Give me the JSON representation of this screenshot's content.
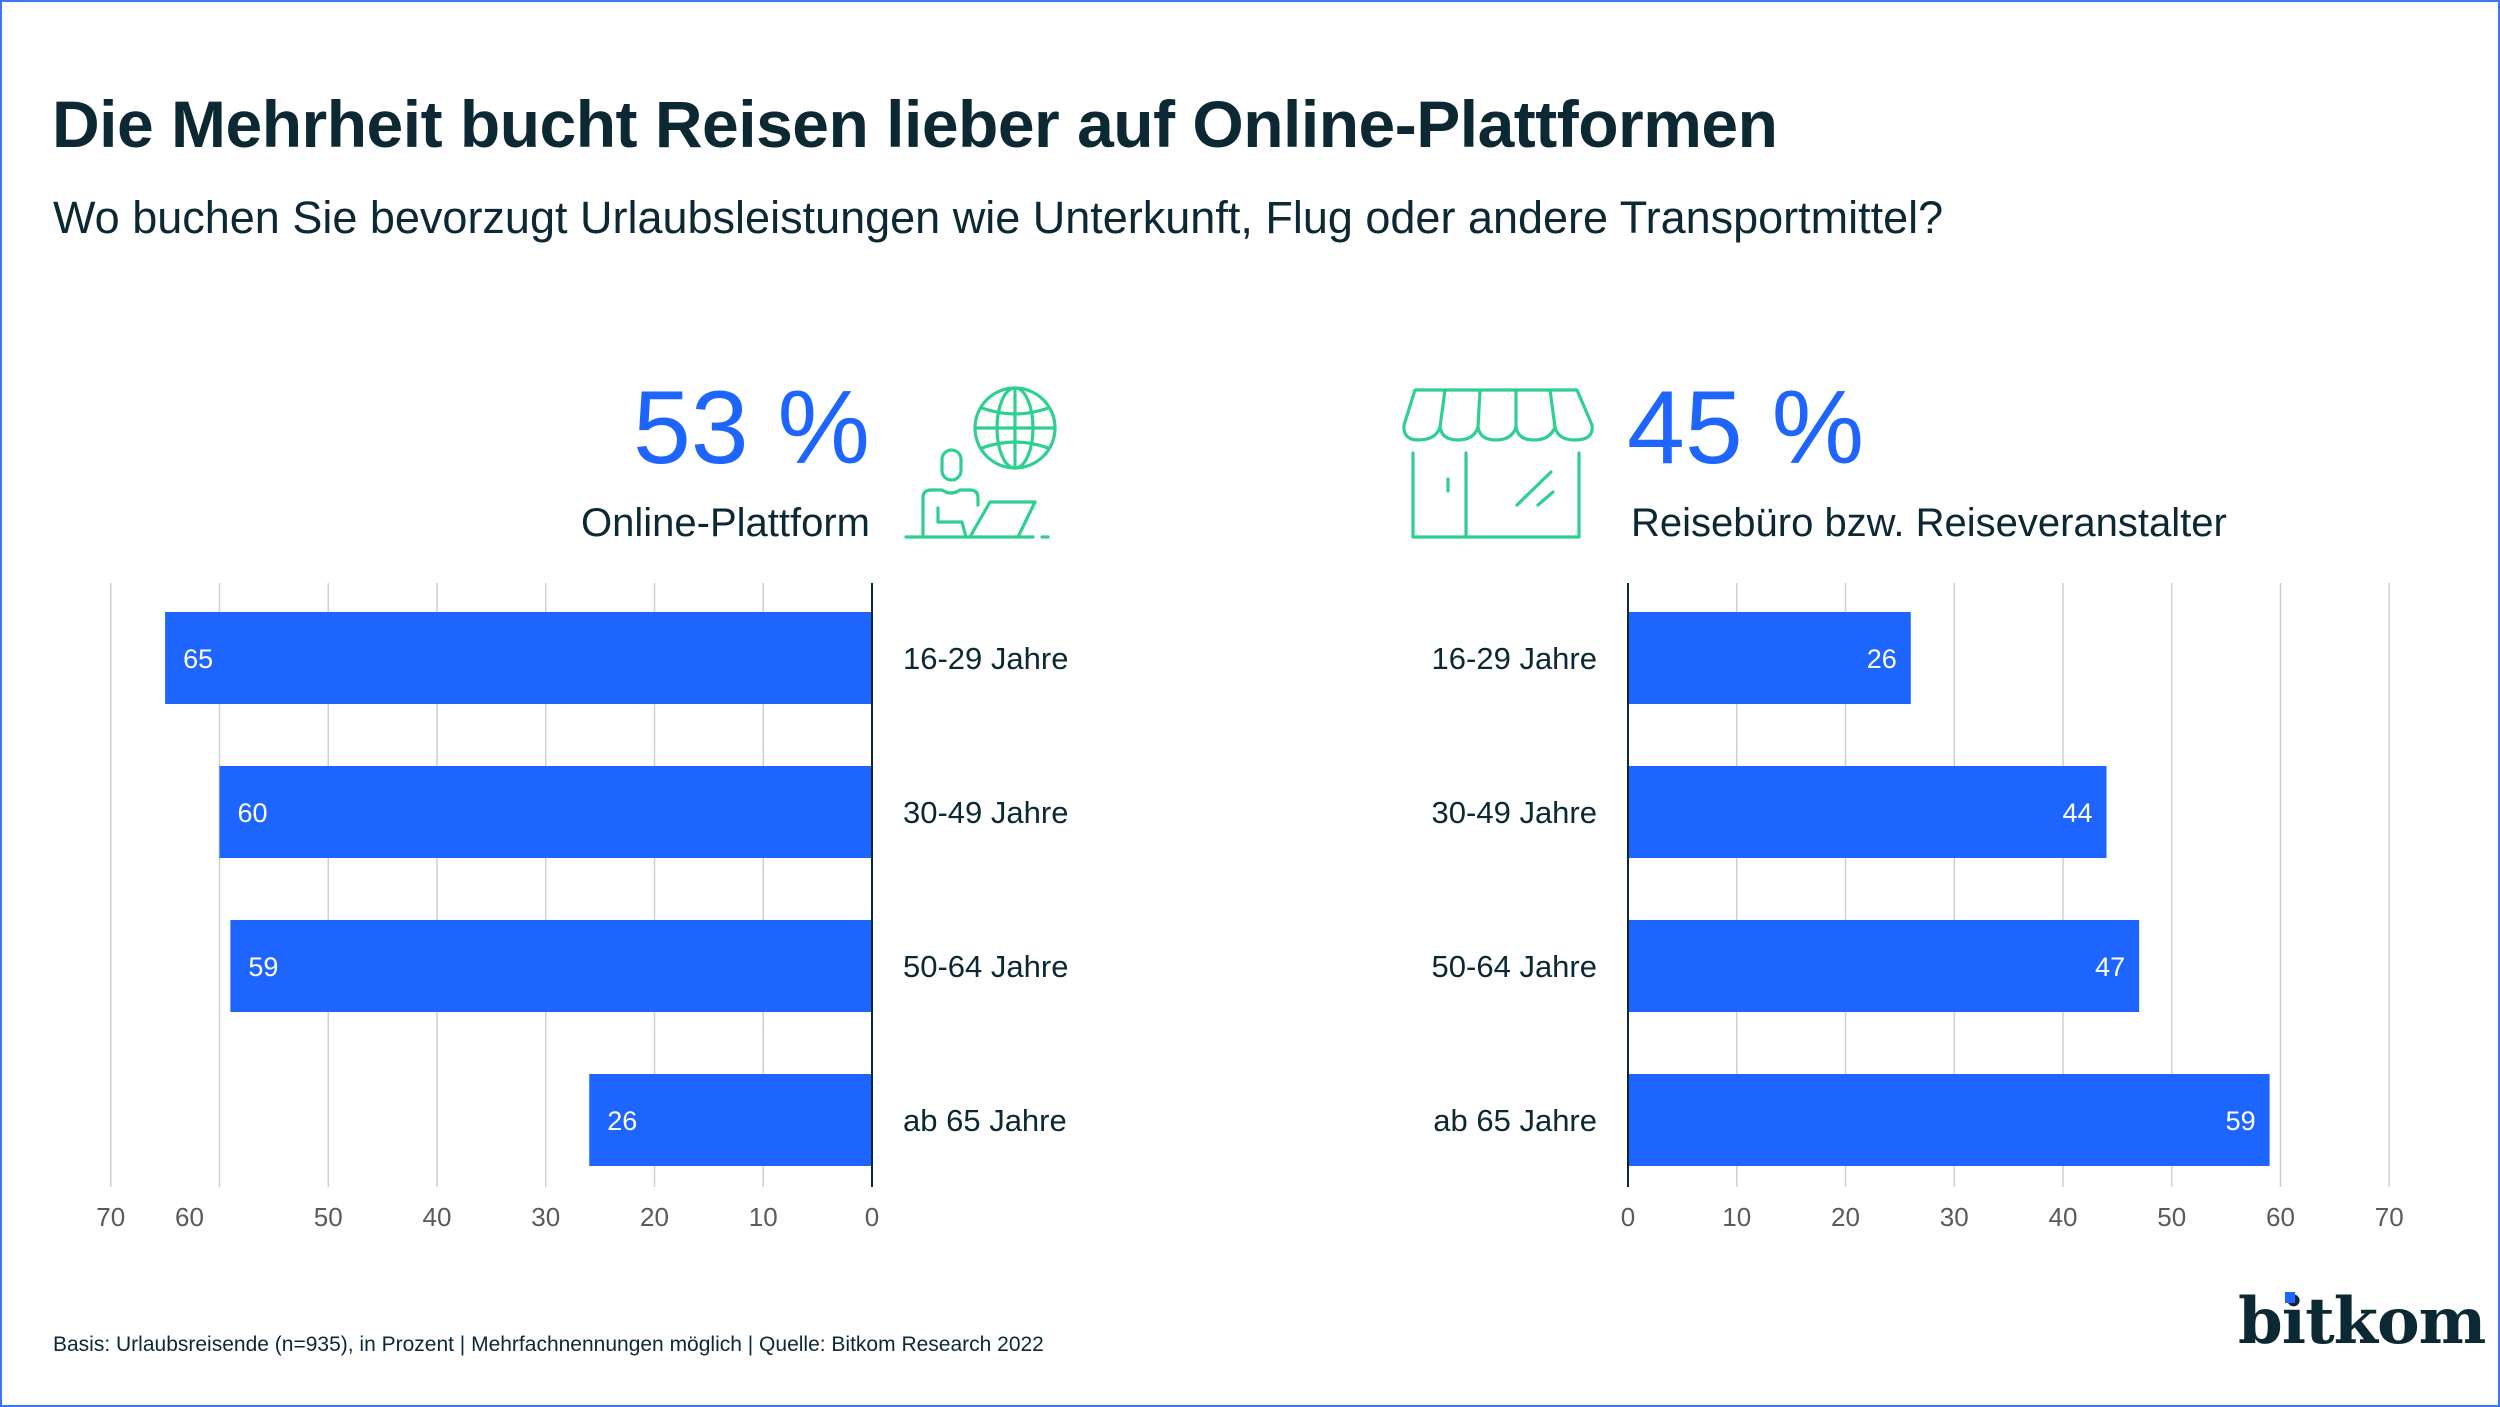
{
  "header": {
    "title": "Die Mehrheit bucht Reisen lieber auf Online-Plattformen",
    "subtitle": "Wo buchen Sie bevorzugt Urlaubsleistungen wie Unterkunft, Flug oder andere Transportmittel?"
  },
  "colors": {
    "bar": "#1e64ff",
    "accent_text": "#1e64ff",
    "icon": "#2ecf91",
    "text": "#0b2833",
    "grid": "#cfcfcf",
    "axis": "#0b2833",
    "border": "#3a78f2"
  },
  "panels": [
    {
      "headline_value": "53 %",
      "headline_label": "Online-Plattform",
      "icon": "person-laptop-globe-icon"
    },
    {
      "headline_value": "45 %",
      "headline_label": "Reisebüro bzw. Reiseveranstalter",
      "icon": "storefront-icon"
    }
  ],
  "chart_data": [
    {
      "type": "bar",
      "orientation": "horizontal",
      "direction": "right-to-left",
      "title": "Online-Plattform",
      "headline": "53 %",
      "categories": [
        "16-29 Jahre",
        "30-49 Jahre",
        "50-64 Jahre",
        "ab 65 Jahre"
      ],
      "values": [
        65,
        60,
        59,
        26
      ],
      "xlim": [
        0,
        70
      ],
      "xticks": [
        70,
        60,
        50,
        40,
        30,
        20,
        10,
        0
      ],
      "grid": true,
      "xlabel": "",
      "ylabel": "",
      "unit": "Prozent"
    },
    {
      "type": "bar",
      "orientation": "horizontal",
      "direction": "left-to-right",
      "title": "Reisebüro bzw. Reiseveranstalter",
      "headline": "45 %",
      "categories": [
        "16-29 Jahre",
        "30-49 Jahre",
        "50-64 Jahre",
        "ab 65 Jahre"
      ],
      "values": [
        26,
        44,
        47,
        59
      ],
      "xlim": [
        0,
        70
      ],
      "xticks": [
        0,
        10,
        20,
        30,
        40,
        50,
        60,
        70
      ],
      "grid": true,
      "xlabel": "",
      "ylabel": "",
      "unit": "Prozent"
    }
  ],
  "footer": {
    "note": "Basis: Urlaubsreisende (n=935), in Prozent | Mehrfachnennungen möglich | Quelle: Bitkom Research 2022",
    "logo": "bitkom"
  }
}
